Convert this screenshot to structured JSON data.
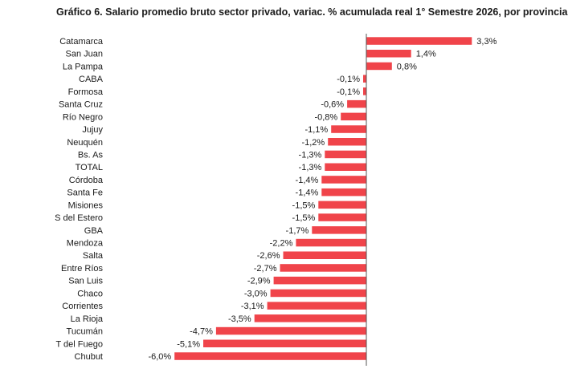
{
  "chart_data": {
    "type": "bar",
    "orientation": "horizontal",
    "title": "Gráfico 6. Salario promedio bruto sector privado, variac. % acumulada real 1° Semestre 2026, por provincia",
    "categories": [
      "Catamarca",
      "San Juan",
      "La Pampa",
      "CABA",
      "Formosa",
      "Santa Cruz",
      "Río Negro",
      "Jujuy",
      "Neuquén",
      "Bs. As",
      "TOTAL",
      "Córdoba",
      "Santa Fe",
      "Misiones",
      "S del Estero",
      "GBA",
      "Mendoza",
      "Salta",
      "Entre Ríos",
      "San Luis",
      "Chaco",
      "Corrientes",
      "La Rioja",
      "Tucumán",
      "T del Fuego",
      "Chubut"
    ],
    "values": [
      3.3,
      1.4,
      0.8,
      -0.1,
      -0.1,
      -0.6,
      -0.8,
      -1.1,
      -1.2,
      -1.3,
      -1.3,
      -1.4,
      -1.4,
      -1.5,
      -1.5,
      -1.7,
      -2.2,
      -2.6,
      -2.7,
      -2.9,
      -3.0,
      -3.1,
      -3.5,
      -4.7,
      -5.1,
      -6.0
    ],
    "value_labels": [
      "3,3%",
      "1,4%",
      "0,8%",
      "-0,1%",
      "-0,1%",
      "-0,6%",
      "-0,8%",
      "-1,1%",
      "-1,2%",
      "-1,3%",
      "-1,3%",
      "-1,4%",
      "-1,4%",
      "-1,5%",
      "-1,5%",
      "-1,7%",
      "-2,2%",
      "-2,6%",
      "-2,7%",
      "-2,9%",
      "-3,0%",
      "-3,1%",
      "-3,5%",
      "-4,7%",
      "-5,1%",
      "-6,0%"
    ],
    "xlim": [
      -6.0,
      3.3
    ],
    "grid": false,
    "legend": "none",
    "bar_color": "#f0444a",
    "axis_color": "#555555"
  }
}
